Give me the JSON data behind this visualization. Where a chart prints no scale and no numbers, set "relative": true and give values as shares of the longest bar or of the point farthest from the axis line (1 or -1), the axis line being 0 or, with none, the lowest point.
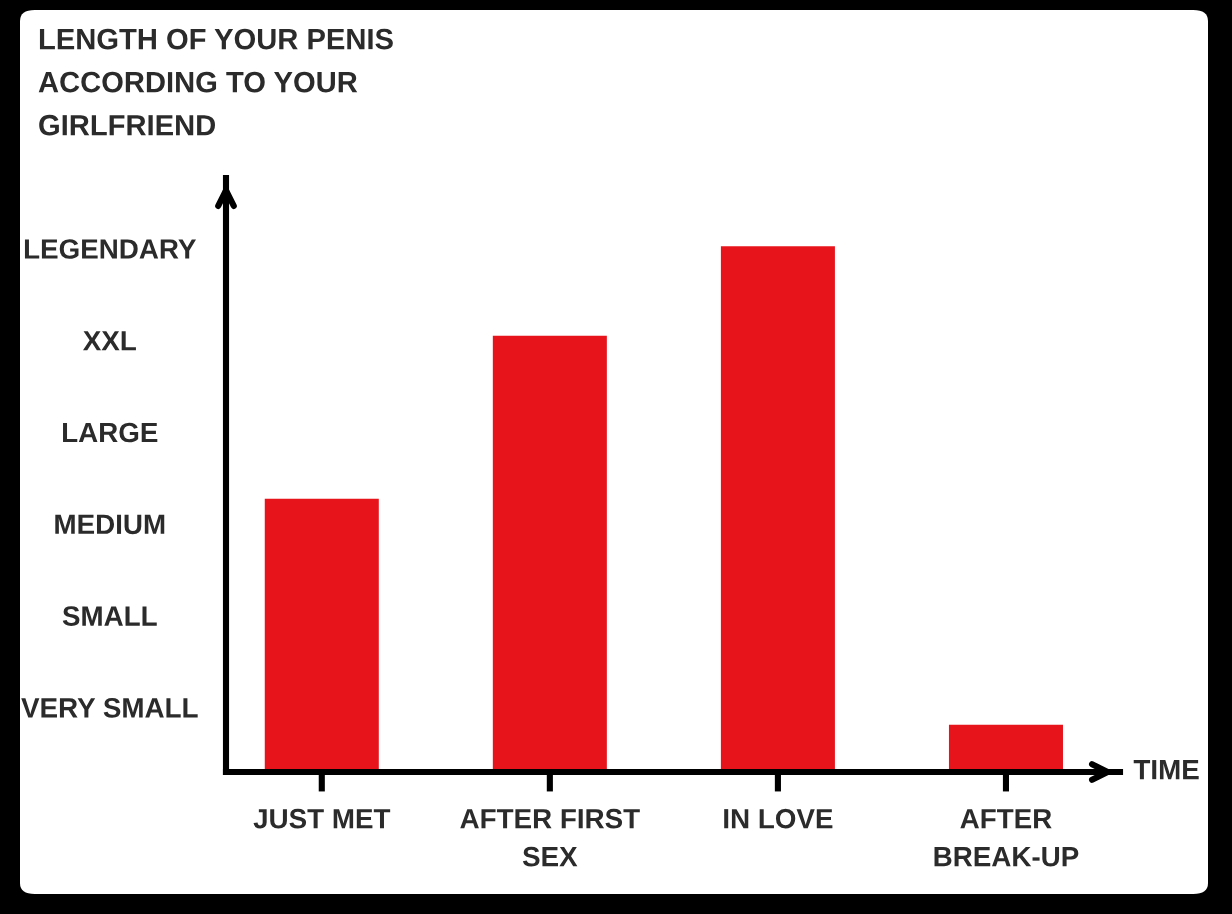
{
  "chart_data": {
    "type": "bar",
    "relative": true,
    "ylabel": "LENGTH OF YOUR PENIS\nACCORDING TO YOUR\nGIRLFRIEND",
    "xlabel": "TIME",
    "categories": [
      "JUST MET",
      "AFTER FIRST\nSEX",
      "IN LOVE",
      "AFTER\nBREAK-UP"
    ],
    "values": [
      0.52,
      0.83,
      1,
      0.09
    ],
    "color": "#e8141c",
    "annotations": [
      "VERY SMALL",
      "SMALL",
      "MEDIUM",
      "LARGE",
      "XXL",
      "LEGENDARY"
    ],
    "grid": false
  }
}
